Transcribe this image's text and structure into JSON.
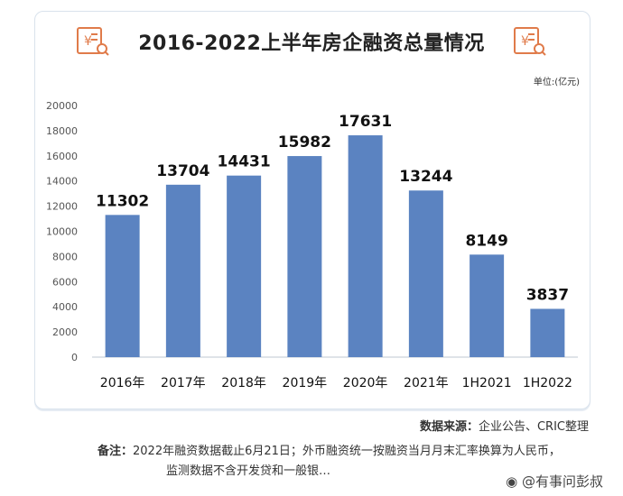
{
  "chart_data": {
    "type": "bar",
    "title": "2016-2022上半年房企融资总量情况",
    "unit": "单位:(亿元)",
    "categories": [
      "2016年",
      "2017年",
      "2018年",
      "2019年",
      "2020年",
      "2021年",
      "1H2021",
      "1H2022"
    ],
    "values": [
      11302,
      13704,
      14431,
      15982,
      17631,
      13244,
      8149,
      3837
    ],
    "ylim": [
      0,
      20000
    ],
    "yticks": [
      0,
      2000,
      4000,
      6000,
      8000,
      10000,
      12000,
      14000,
      16000,
      18000,
      20000
    ],
    "bar_color": "#5b83c1",
    "grid": false
  },
  "footer": {
    "source_label": "数据来源：",
    "source_text": "企业公告、CRIC整理",
    "note_label": "备注：",
    "note_text1": "2022年融资数据截止6月21日；外币融资统一按融资当月月末汇率换算为人民币，",
    "note_text2": "监测数据不含开发贷和一般银…"
  },
  "watermark": {
    "text": "@有事问彭叔"
  }
}
